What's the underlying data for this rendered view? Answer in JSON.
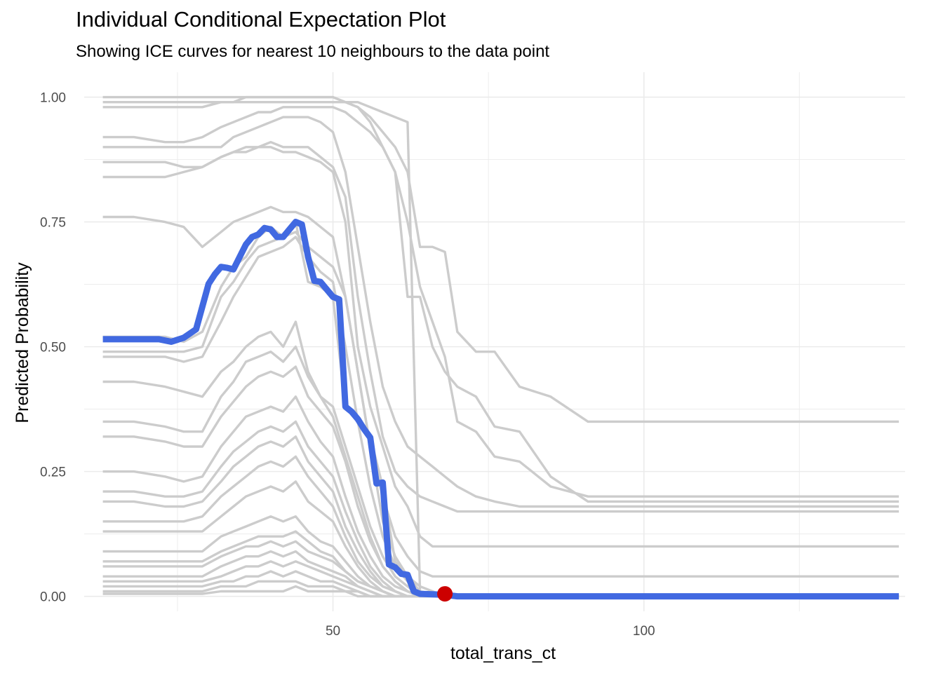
{
  "chart_data": {
    "type": "line",
    "title": "Individual Conditional Expectation Plot",
    "subtitle": "Showing ICE curves for nearest 10 neighbours to the data point",
    "xlabel": "total_trans_ct",
    "ylabel": "Predicted Probability",
    "xlim": [
      10,
      142
    ],
    "ylim": [
      -0.03,
      1.05
    ],
    "x_ticks": [
      50,
      100
    ],
    "y_ticks": [
      0,
      0.25,
      0.5,
      0.75,
      1.0
    ],
    "y_tick_labels": [
      "0.00",
      "0.25",
      "0.50",
      "0.75",
      "1.00"
    ],
    "grid": true,
    "legend": "none",
    "colors": {
      "ice": "#cccccc",
      "highlight": "#4169e1",
      "point": "#cc0000",
      "grid": "#ebebeb"
    },
    "x": [
      13,
      18,
      23,
      26,
      29,
      32,
      34,
      36,
      38,
      40,
      42,
      44,
      46,
      48,
      50,
      52,
      54,
      56,
      58,
      60,
      62,
      64,
      66,
      68,
      70,
      73,
      76,
      80,
      85,
      91,
      100,
      110,
      120,
      130,
      141
    ],
    "ice_curves": [
      [
        1.0,
        1.0,
        1.0,
        1.0,
        1.0,
        1.0,
        1.0,
        1.0,
        1.0,
        1.0,
        1.0,
        1.0,
        1.0,
        1.0,
        1.0,
        0.99,
        0.99,
        0.98,
        0.97,
        0.96,
        0.95,
        0.01,
        0.0,
        0.0,
        0.0,
        0.0,
        0.0,
        0.0,
        0.0,
        0.0,
        0.0,
        0.0,
        0.0,
        0.0,
        0.0
      ],
      [
        0.99,
        0.99,
        0.99,
        0.99,
        0.99,
        0.99,
        0.99,
        1.0,
        1.0,
        1.0,
        1.0,
        1.0,
        1.0,
        1.0,
        1.0,
        0.99,
        0.98,
        0.96,
        0.93,
        0.9,
        0.85,
        0.7,
        0.7,
        0.69,
        0.53,
        0.49,
        0.49,
        0.42,
        0.4,
        0.35,
        0.35,
        0.35,
        0.35,
        0.35,
        0.35
      ],
      [
        0.98,
        0.98,
        0.98,
        0.98,
        0.98,
        0.99,
        0.99,
        0.99,
        0.99,
        0.99,
        0.99,
        0.99,
        0.99,
        0.99,
        0.99,
        0.99,
        0.98,
        0.95,
        0.9,
        0.85,
        0.6,
        0.6,
        0.5,
        0.45,
        0.42,
        0.4,
        0.34,
        0.33,
        0.24,
        0.19,
        0.19,
        0.19,
        0.19,
        0.19,
        0.19
      ],
      [
        0.92,
        0.92,
        0.91,
        0.91,
        0.92,
        0.94,
        0.95,
        0.96,
        0.97,
        0.97,
        0.98,
        0.98,
        0.98,
        0.98,
        0.98,
        0.97,
        0.95,
        0.93,
        0.9,
        0.85,
        0.75,
        0.62,
        0.55,
        0.48,
        0.35,
        0.33,
        0.28,
        0.27,
        0.22,
        0.2,
        0.2,
        0.2,
        0.2,
        0.2,
        0.2
      ],
      [
        0.9,
        0.9,
        0.9,
        0.9,
        0.9,
        0.9,
        0.92,
        0.93,
        0.94,
        0.95,
        0.96,
        0.96,
        0.96,
        0.95,
        0.93,
        0.85,
        0.7,
        0.55,
        0.42,
        0.35,
        0.3,
        0.28,
        0.26,
        0.24,
        0.22,
        0.2,
        0.19,
        0.18,
        0.18,
        0.18,
        0.18,
        0.18,
        0.18,
        0.18,
        0.18
      ],
      [
        0.87,
        0.87,
        0.87,
        0.86,
        0.86,
        0.88,
        0.89,
        0.9,
        0.9,
        0.91,
        0.9,
        0.9,
        0.9,
        0.88,
        0.86,
        0.8,
        0.6,
        0.45,
        0.32,
        0.25,
        0.22,
        0.2,
        0.19,
        0.18,
        0.17,
        0.17,
        0.17,
        0.17,
        0.17,
        0.17,
        0.17,
        0.17,
        0.17,
        0.17,
        0.17
      ],
      [
        0.84,
        0.84,
        0.84,
        0.85,
        0.86,
        0.88,
        0.89,
        0.89,
        0.9,
        0.9,
        0.89,
        0.89,
        0.88,
        0.87,
        0.85,
        0.75,
        0.5,
        0.38,
        0.3,
        0.22,
        0.18,
        0.12,
        0.1,
        0.1,
        0.1,
        0.1,
        0.1,
        0.1,
        0.1,
        0.1,
        0.1,
        0.1,
        0.1,
        0.1,
        0.1
      ],
      [
        0.76,
        0.76,
        0.75,
        0.74,
        0.7,
        0.73,
        0.75,
        0.76,
        0.77,
        0.78,
        0.77,
        0.77,
        0.76,
        0.74,
        0.72,
        0.6,
        0.45,
        0.3,
        0.2,
        0.12,
        0.08,
        0.05,
        0.04,
        0.04,
        0.04,
        0.04,
        0.04,
        0.04,
        0.04,
        0.04,
        0.04,
        0.04,
        0.04,
        0.04,
        0.04
      ],
      [
        0.52,
        0.52,
        0.52,
        0.51,
        0.53,
        0.62,
        0.66,
        0.68,
        0.72,
        0.74,
        0.72,
        0.75,
        0.63,
        0.62,
        0.6,
        0.38,
        0.35,
        0.32,
        0.22,
        0.07,
        0.04,
        0.01,
        0.005,
        0.005,
        0.0,
        0.0,
        0.0,
        0.0,
        0.0,
        0.0,
        0.0,
        0.0,
        0.0,
        0.0,
        0.0
      ],
      [
        0.49,
        0.49,
        0.49,
        0.49,
        0.5,
        0.6,
        0.63,
        0.67,
        0.7,
        0.71,
        0.72,
        0.73,
        0.7,
        0.68,
        0.66,
        0.6,
        0.45,
        0.3,
        0.15,
        0.08,
        0.04,
        0.02,
        0.01,
        0.0,
        0.0,
        0.0,
        0.0,
        0.0,
        0.0,
        0.0,
        0.0,
        0.0,
        0.0,
        0.0,
        0.0
      ],
      [
        0.48,
        0.48,
        0.48,
        0.47,
        0.48,
        0.55,
        0.6,
        0.64,
        0.68,
        0.69,
        0.7,
        0.72,
        0.68,
        0.65,
        0.63,
        0.5,
        0.35,
        0.22,
        0.12,
        0.06,
        0.03,
        0.01,
        0.0,
        0.0,
        0.0,
        0.0,
        0.0,
        0.0,
        0.0,
        0.0,
        0.0,
        0.0,
        0.0,
        0.0,
        0.0
      ],
      [
        0.43,
        0.43,
        0.42,
        0.41,
        0.4,
        0.45,
        0.47,
        0.5,
        0.52,
        0.53,
        0.5,
        0.55,
        0.45,
        0.4,
        0.36,
        0.28,
        0.2,
        0.12,
        0.06,
        0.03,
        0.01,
        0.0,
        0.0,
        0.0,
        0.0,
        0.0,
        0.0,
        0.0,
        0.0,
        0.0,
        0.0,
        0.0,
        0.0,
        0.0,
        0.0
      ],
      [
        0.35,
        0.35,
        0.34,
        0.33,
        0.33,
        0.4,
        0.43,
        0.47,
        0.48,
        0.49,
        0.47,
        0.5,
        0.44,
        0.4,
        0.38,
        0.3,
        0.22,
        0.14,
        0.08,
        0.04,
        0.02,
        0.0,
        0.0,
        0.0,
        0.0,
        0.0,
        0.0,
        0.0,
        0.0,
        0.0,
        0.0,
        0.0,
        0.0,
        0.0,
        0.0
      ],
      [
        0.32,
        0.32,
        0.31,
        0.3,
        0.3,
        0.36,
        0.39,
        0.42,
        0.44,
        0.45,
        0.44,
        0.46,
        0.4,
        0.37,
        0.34,
        0.27,
        0.18,
        0.11,
        0.06,
        0.03,
        0.01,
        0.0,
        0.0,
        0.0,
        0.0,
        0.0,
        0.0,
        0.0,
        0.0,
        0.0,
        0.0,
        0.0,
        0.0,
        0.0,
        0.0
      ],
      [
        0.25,
        0.25,
        0.24,
        0.23,
        0.24,
        0.3,
        0.33,
        0.36,
        0.37,
        0.38,
        0.37,
        0.4,
        0.35,
        0.31,
        0.28,
        0.2,
        0.13,
        0.08,
        0.04,
        0.02,
        0.01,
        0.0,
        0.0,
        0.0,
        0.0,
        0.0,
        0.0,
        0.0,
        0.0,
        0.0,
        0.0,
        0.0,
        0.0,
        0.0,
        0.0
      ],
      [
        0.21,
        0.21,
        0.2,
        0.2,
        0.21,
        0.26,
        0.29,
        0.31,
        0.33,
        0.34,
        0.33,
        0.35,
        0.3,
        0.27,
        0.24,
        0.17,
        0.11,
        0.06,
        0.03,
        0.01,
        0.0,
        0.0,
        0.0,
        0.0,
        0.0,
        0.0,
        0.0,
        0.0,
        0.0,
        0.0,
        0.0,
        0.0,
        0.0,
        0.0,
        0.0
      ],
      [
        0.19,
        0.19,
        0.18,
        0.18,
        0.19,
        0.23,
        0.26,
        0.28,
        0.3,
        0.31,
        0.3,
        0.32,
        0.27,
        0.24,
        0.21,
        0.14,
        0.09,
        0.05,
        0.02,
        0.01,
        0.0,
        0.0,
        0.0,
        0.0,
        0.0,
        0.0,
        0.0,
        0.0,
        0.0,
        0.0,
        0.0,
        0.0,
        0.0,
        0.0,
        0.0
      ],
      [
        0.15,
        0.15,
        0.15,
        0.15,
        0.16,
        0.2,
        0.22,
        0.24,
        0.26,
        0.27,
        0.26,
        0.28,
        0.24,
        0.21,
        0.18,
        0.12,
        0.07,
        0.04,
        0.02,
        0.01,
        0.0,
        0.0,
        0.0,
        0.0,
        0.0,
        0.0,
        0.0,
        0.0,
        0.0,
        0.0,
        0.0,
        0.0,
        0.0,
        0.0,
        0.0
      ],
      [
        0.13,
        0.13,
        0.13,
        0.13,
        0.13,
        0.16,
        0.18,
        0.2,
        0.21,
        0.22,
        0.21,
        0.23,
        0.19,
        0.17,
        0.15,
        0.1,
        0.06,
        0.03,
        0.01,
        0.0,
        0.0,
        0.0,
        0.0,
        0.0,
        0.0,
        0.0,
        0.0,
        0.0,
        0.0,
        0.0,
        0.0,
        0.0,
        0.0,
        0.0,
        0.0
      ],
      [
        0.09,
        0.09,
        0.09,
        0.09,
        0.09,
        0.12,
        0.13,
        0.14,
        0.15,
        0.16,
        0.15,
        0.16,
        0.13,
        0.11,
        0.1,
        0.07,
        0.04,
        0.02,
        0.01,
        0.0,
        0.0,
        0.0,
        0.0,
        0.0,
        0.0,
        0.0,
        0.0,
        0.0,
        0.0,
        0.0,
        0.0,
        0.0,
        0.0,
        0.0,
        0.0
      ],
      [
        0.07,
        0.07,
        0.07,
        0.07,
        0.07,
        0.09,
        0.1,
        0.11,
        0.12,
        0.12,
        0.12,
        0.13,
        0.11,
        0.09,
        0.08,
        0.05,
        0.03,
        0.02,
        0.01,
        0.0,
        0.0,
        0.0,
        0.0,
        0.0,
        0.0,
        0.0,
        0.0,
        0.0,
        0.0,
        0.0,
        0.0,
        0.0,
        0.0,
        0.0,
        0.0
      ],
      [
        0.06,
        0.06,
        0.06,
        0.06,
        0.06,
        0.08,
        0.09,
        0.1,
        0.1,
        0.11,
        0.1,
        0.11,
        0.09,
        0.08,
        0.07,
        0.05,
        0.03,
        0.02,
        0.01,
        0.0,
        0.0,
        0.0,
        0.0,
        0.0,
        0.0,
        0.0,
        0.0,
        0.0,
        0.0,
        0.0,
        0.0,
        0.0,
        0.0,
        0.0,
        0.0
      ],
      [
        0.04,
        0.04,
        0.04,
        0.04,
        0.04,
        0.06,
        0.07,
        0.08,
        0.08,
        0.09,
        0.08,
        0.09,
        0.07,
        0.06,
        0.05,
        0.04,
        0.02,
        0.01,
        0.0,
        0.0,
        0.0,
        0.0,
        0.0,
        0.0,
        0.0,
        0.0,
        0.0,
        0.0,
        0.0,
        0.0,
        0.0,
        0.0,
        0.0,
        0.0,
        0.0
      ],
      [
        0.03,
        0.03,
        0.03,
        0.03,
        0.03,
        0.04,
        0.05,
        0.06,
        0.06,
        0.07,
        0.06,
        0.07,
        0.06,
        0.05,
        0.04,
        0.03,
        0.02,
        0.01,
        0.0,
        0.0,
        0.0,
        0.0,
        0.0,
        0.0,
        0.0,
        0.0,
        0.0,
        0.0,
        0.0,
        0.0,
        0.0,
        0.0,
        0.0,
        0.0,
        0.0
      ],
      [
        0.02,
        0.02,
        0.02,
        0.02,
        0.02,
        0.03,
        0.03,
        0.04,
        0.04,
        0.05,
        0.04,
        0.05,
        0.04,
        0.03,
        0.03,
        0.02,
        0.01,
        0.0,
        0.0,
        0.0,
        0.0,
        0.0,
        0.0,
        0.0,
        0.0,
        0.0,
        0.0,
        0.0,
        0.0,
        0.0,
        0.0,
        0.0,
        0.0,
        0.0,
        0.0
      ],
      [
        0.01,
        0.01,
        0.01,
        0.01,
        0.01,
        0.02,
        0.02,
        0.02,
        0.03,
        0.03,
        0.03,
        0.03,
        0.02,
        0.02,
        0.02,
        0.01,
        0.01,
        0.0,
        0.0,
        0.0,
        0.0,
        0.0,
        0.0,
        0.0,
        0.0,
        0.0,
        0.0,
        0.0,
        0.0,
        0.0,
        0.0,
        0.0,
        0.0,
        0.0,
        0.0
      ],
      [
        0.005,
        0.005,
        0.005,
        0.005,
        0.005,
        0.01,
        0.01,
        0.01,
        0.01,
        0.01,
        0.01,
        0.02,
        0.01,
        0.01,
        0.01,
        0.01,
        0.0,
        0.0,
        0.0,
        0.0,
        0.0,
        0.0,
        0.0,
        0.0,
        0.0,
        0.0,
        0.0,
        0.0,
        0.0,
        0.0,
        0.0,
        0.0,
        0.0,
        0.0,
        0.0
      ]
    ],
    "highlight_curve": {
      "x": [
        13,
        16,
        19,
        22,
        24,
        26,
        28,
        30,
        31,
        32,
        33,
        34,
        35,
        36,
        37,
        38,
        39,
        40,
        41,
        42,
        43,
        44,
        45,
        46,
        47,
        48,
        50,
        51,
        52,
        53,
        54,
        55,
        56,
        57,
        58,
        59,
        60,
        61,
        62,
        63,
        64,
        66,
        68,
        70,
        80,
        91,
        141
      ],
      "y": [
        0.515,
        0.515,
        0.515,
        0.515,
        0.51,
        0.518,
        0.535,
        0.626,
        0.645,
        0.66,
        0.658,
        0.655,
        0.68,
        0.705,
        0.72,
        0.725,
        0.738,
        0.735,
        0.72,
        0.72,
        0.735,
        0.75,
        0.745,
        0.68,
        0.632,
        0.63,
        0.6,
        0.595,
        0.38,
        0.37,
        0.355,
        0.335,
        0.318,
        0.226,
        0.228,
        0.064,
        0.058,
        0.045,
        0.043,
        0.01,
        0.005,
        0.004,
        0.003,
        0.0,
        0.0,
        0.0,
        0.0
      ]
    },
    "data_point": {
      "x": 68,
      "y": 0.005
    }
  }
}
